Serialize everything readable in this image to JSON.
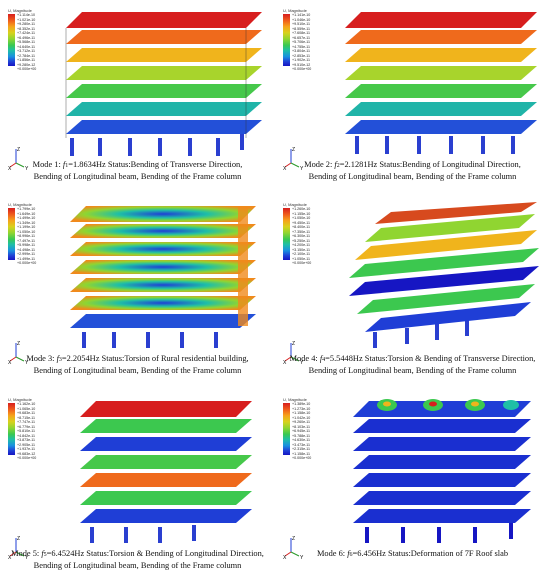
{
  "legend": {
    "m1": {
      "title": "U, Magnitude",
      "values": [
        "+1.114e-10",
        "+1.021e-10",
        "+9.280e-11",
        "+8.352e-11",
        "+7.424e-11",
        "+6.496e-11",
        "+5.568e-11",
        "+4.640e-11",
        "+3.712e-11",
        "+2.784e-11",
        "+1.856e-11",
        "+9.280e-12",
        "+0.000e+00"
      ]
    },
    "m2": {
      "title": "U, Magnitude",
      "values": [
        "+1.141e-10",
        "+1.046e-10",
        "+9.510e-11",
        "+8.559e-11",
        "+7.608e-11",
        "+6.657e-11",
        "+5.706e-11",
        "+4.755e-11",
        "+3.804e-11",
        "+2.853e-11",
        "+1.902e-11",
        "+9.510e-12",
        "+0.000e+00"
      ]
    },
    "m3": {
      "title": "U, Magnitude",
      "values": [
        "+1.799e-10",
        "+1.649e-10",
        "+1.499e-10",
        "+1.349e-10",
        "+1.199e-10",
        "+1.050e-10",
        "+8.996e-11",
        "+7.497e-11",
        "+5.998e-11",
        "+4.498e-11",
        "+2.999e-11",
        "+1.499e-11",
        "+0.000e+00"
      ]
    },
    "m4": {
      "title": "U, Magnitude",
      "values": [
        "+1.260e-10",
        "+1.155e-10",
        "+1.050e-10",
        "+9.450e-11",
        "+8.400e-11",
        "+7.350e-11",
        "+6.300e-11",
        "+5.250e-11",
        "+4.200e-11",
        "+3.150e-11",
        "+2.100e-11",
        "+1.050e-11",
        "+0.000e+00"
      ]
    },
    "m5": {
      "title": "U, Magnitude",
      "values": [
        "+1.162e-10",
        "+1.065e-10",
        "+9.683e-11",
        "+8.715e-11",
        "+7.747e-11",
        "+6.779e-11",
        "+5.810e-11",
        "+4.842e-11",
        "+3.873e-11",
        "+2.905e-11",
        "+1.937e-11",
        "+9.683e-12",
        "+0.000e+00"
      ]
    },
    "m6": {
      "title": "U, Magnitude",
      "values": [
        "+1.389e-10",
        "+1.273e-10",
        "+1.158e-10",
        "+1.042e-10",
        "+9.260e-11",
        "+8.103e-11",
        "+6.945e-11",
        "+5.788e-11",
        "+4.630e-11",
        "+3.473e-11",
        "+2.315e-11",
        "+1.158e-11",
        "+0.000e+00"
      ]
    }
  },
  "axes": {
    "x": "X",
    "y": "Y",
    "z": "Z"
  },
  "captions": {
    "m1": {
      "lead": "Mode 1: ",
      "f": "f",
      "sub": "1",
      "freq": "=1.8634Hz",
      "status": "   Status:Bending of Transverse Direction,",
      "line2": "Bending of Longitudinal beam, Bending of the Frame column"
    },
    "m2": {
      "lead": "Mode 2: ",
      "f": "f",
      "sub": "2",
      "freq": "=2.1281Hz",
      "status": "   Status:Bending of Longitudinal Direction,",
      "line2": "Bending of Longitudinal beam, Bending of the Frame column"
    },
    "m3": {
      "lead": "Mode 3: ",
      "f": "f",
      "sub": "3",
      "freq": "=2.2054Hz",
      "status": "   Status:Torsion of Rural residential building,",
      "line2": "Bending of Longitudinal beam, Bending of the Frame column"
    },
    "m4": {
      "lead": "Mode 4: ",
      "f": "f",
      "sub": "4",
      "freq": "=5.5448Hz",
      "status": "   Status:Torsion & Bending of Transverse Direction,",
      "line2": "Bending of Longitudinal beam, Bending of the Frame column"
    },
    "m5": {
      "lead": "Mode 5: ",
      "f": "f",
      "sub": "5",
      "freq": "=6.4524Hz",
      "status": "   Status:Torsion & Bending of Longitudinal Direction,",
      "line2": "Bending of Longitudinal beam, Bending of the Frame column"
    },
    "m6": {
      "lead": "Mode 6: ",
      "f": "f",
      "sub": "6",
      "freq": "=6.456Hz",
      "status": "   Status:Deformation of 7F Roof slab",
      "line2": ""
    }
  },
  "colors": {
    "red": "#d71e1e",
    "orange": "#f08a1c",
    "yellow": "#d8d21d",
    "green": "#3cc84f",
    "cyan": "#1fbfa6",
    "blue": "#1f3ed6",
    "darkblue": "#1616c3"
  }
}
